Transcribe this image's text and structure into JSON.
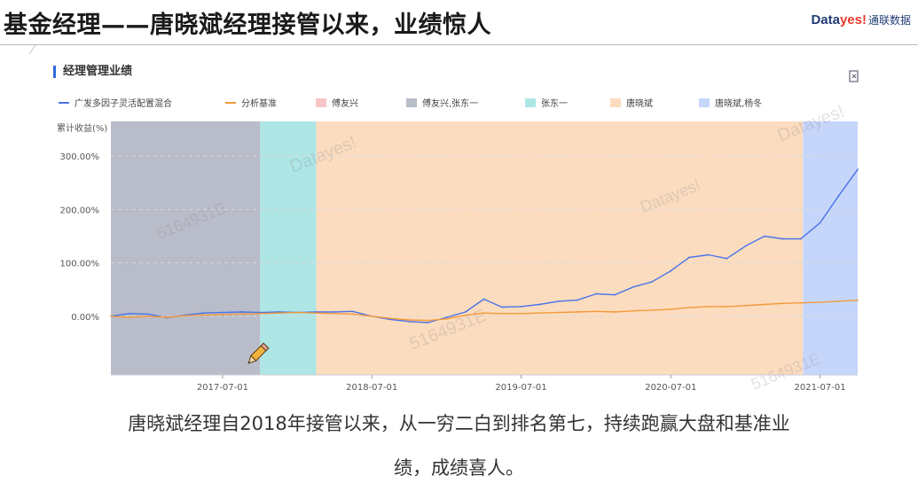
{
  "page": {
    "title": "基金经理——唐晓斌经理接管以来，业绩惊人",
    "logo": {
      "part1": "Data",
      "part2": "yes!",
      "part3": "通联数据"
    },
    "caption_line1": "唐晓斌经理自2018年接管以来，从一穷二白到排名第七，持续跑赢大盘和基准业",
    "caption_line2": "绩，成绩喜人。",
    "icons": [
      "export-icon",
      "pencil-icon"
    ]
  },
  "panel": {
    "title": "经理管理业绩",
    "watermarks": [
      "Datayes!",
      "5164931E",
      "Datayes!",
      "5164931E",
      "Datayes!",
      "5164931E",
      "Datayes!"
    ]
  },
  "chart_data": {
    "type": "line",
    "ylabel": "累计收益(%)",
    "y_ticks": [
      0,
      100,
      200,
      300
    ],
    "y_tick_labels": [
      "0.00%",
      "100.00%",
      "200.00%",
      "300.00%"
    ],
    "ylim": [
      -110,
      365
    ],
    "x_range": [
      "2016-10-01",
      "2021-10-01"
    ],
    "x_ticks": [
      "2017-07-01",
      "2018-07-01",
      "2019-07-01",
      "2020-07-01",
      "2021-07-01"
    ],
    "grid": "horizontal dashed",
    "legend_position": "top",
    "series": [
      {
        "name": "广发多因子灵活配置混合",
        "color": "#4a74e8",
        "x": [
          "2016-10-01",
          "2016-11-15",
          "2017-01-01",
          "2017-02-15",
          "2017-04-01",
          "2017-05-15",
          "2017-07-01",
          "2017-08-15",
          "2017-10-01",
          "2017-11-15",
          "2018-01-01",
          "2018-02-15",
          "2018-04-01",
          "2018-05-15",
          "2018-07-01",
          "2018-08-15",
          "2018-10-01",
          "2018-11-15",
          "2019-01-01",
          "2019-02-15",
          "2019-04-01",
          "2019-05-15",
          "2019-07-01",
          "2019-08-15",
          "2019-10-01",
          "2019-11-15",
          "2020-01-01",
          "2020-02-15",
          "2020-04-01",
          "2020-05-15",
          "2020-07-01",
          "2020-08-15",
          "2020-10-01",
          "2020-11-15",
          "2021-01-01",
          "2021-02-15",
          "2021-04-01",
          "2021-05-15",
          "2021-07-01",
          "2021-08-15",
          "2021-10-01"
        ],
        "values": [
          0,
          5,
          4,
          -3,
          2,
          6,
          7,
          8,
          7,
          8,
          7,
          8,
          8,
          9,
          0,
          -6,
          -10,
          -12,
          -2,
          8,
          32,
          17,
          18,
          22,
          28,
          30,
          42,
          40,
          55,
          64,
          85,
          110,
          115,
          108,
          132,
          150,
          145,
          145,
          175,
          225,
          275
        ]
      },
      {
        "name": "分析基准",
        "color": "#f29a3a",
        "x": [
          "2016-10-01",
          "2016-11-15",
          "2017-01-01",
          "2017-02-15",
          "2017-04-01",
          "2017-05-15",
          "2017-07-01",
          "2017-08-15",
          "2017-10-01",
          "2017-11-15",
          "2018-01-01",
          "2018-02-15",
          "2018-04-01",
          "2018-05-15",
          "2018-07-01",
          "2018-08-15",
          "2018-10-01",
          "2018-11-15",
          "2019-01-01",
          "2019-02-15",
          "2019-04-01",
          "2019-05-15",
          "2019-07-01",
          "2019-08-15",
          "2019-10-01",
          "2019-11-15",
          "2020-01-01",
          "2020-02-15",
          "2020-04-01",
          "2020-05-15",
          "2020-07-01",
          "2020-08-15",
          "2020-10-01",
          "2020-11-15",
          "2021-01-01",
          "2021-02-15",
          "2021-04-01",
          "2021-05-15",
          "2021-07-01",
          "2021-08-15",
          "2021-10-01"
        ],
        "values": [
          0,
          -2,
          0,
          -2,
          1,
          2,
          3,
          4,
          5,
          6,
          7,
          6,
          5,
          4,
          0,
          -4,
          -7,
          -8,
          -5,
          2,
          6,
          5,
          5,
          6,
          7,
          8,
          9,
          8,
          10,
          11,
          13,
          16,
          18,
          18,
          20,
          22,
          24,
          25,
          26,
          28,
          30
        ]
      }
    ],
    "periods": [
      {
        "name": "傅友兴",
        "color": "#f6c6c6",
        "start": "2016-10-01",
        "end": "2016-10-01"
      },
      {
        "name": "傅友兴,张东一",
        "color": "#b9bcc9",
        "start": "2016-10-01",
        "end": "2017-10-01"
      },
      {
        "name": "张东一",
        "color": "#aee6e6",
        "start": "2017-10-01",
        "end": "2018-02-15"
      },
      {
        "name": "唐晓斌",
        "color": "#fcdcbe",
        "start": "2018-02-15",
        "end": "2021-05-20"
      },
      {
        "name": "唐晓斌,杨冬",
        "color": "#c6d6fb",
        "start": "2021-05-20",
        "end": "2021-10-01"
      }
    ]
  }
}
